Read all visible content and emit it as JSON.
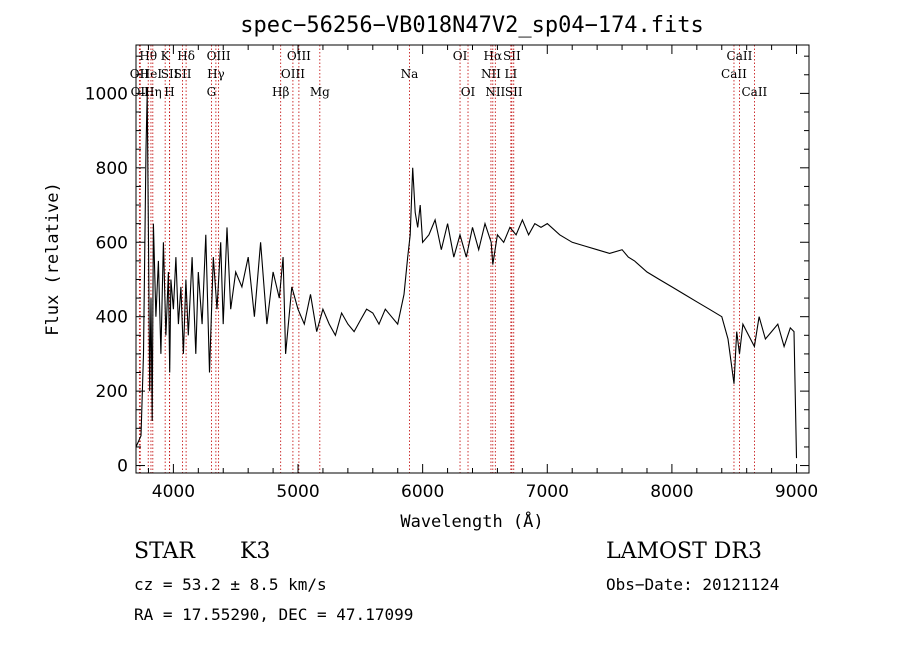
{
  "chart_data": {
    "type": "line",
    "title": "spec−56256−VB018N47V2_sp04−174.fits",
    "xlabel": "Wavelength (Å)",
    "ylabel": "Flux (relative)",
    "xlim": [
      3700,
      9100
    ],
    "ylim": [
      -20,
      1130
    ],
    "xticks": [
      4000,
      5000,
      6000,
      7000,
      8000,
      9000
    ],
    "yticks": [
      0,
      200,
      400,
      600,
      800,
      1000
    ],
    "series": [
      {
        "name": "spectrum",
        "x": [
          3700,
          3740,
          3760,
          3780,
          3790,
          3800,
          3810,
          3820,
          3830,
          3840,
          3860,
          3880,
          3900,
          3920,
          3940,
          3960,
          3970,
          3980,
          4000,
          4020,
          4040,
          4060,
          4080,
          4100,
          4120,
          4150,
          4180,
          4200,
          4230,
          4260,
          4290,
          4320,
          4350,
          4380,
          4400,
          4430,
          4460,
          4500,
          4550,
          4600,
          4650,
          4700,
          4750,
          4800,
          4850,
          4880,
          4900,
          4950,
          5000,
          5050,
          5100,
          5150,
          5200,
          5250,
          5300,
          5350,
          5400,
          5450,
          5500,
          5550,
          5600,
          5650,
          5700,
          5750,
          5800,
          5850,
          5880,
          5900,
          5920,
          5940,
          5960,
          5980,
          6000,
          6050,
          6100,
          6150,
          6200,
          6250,
          6300,
          6350,
          6400,
          6450,
          6500,
          6550,
          6563,
          6600,
          6650,
          6700,
          6750,
          6800,
          6850,
          6900,
          6950,
          7000,
          7100,
          7200,
          7300,
          7400,
          7500,
          7600,
          7650,
          7700,
          7800,
          7900,
          8000,
          8100,
          8200,
          8300,
          8400,
          8450,
          8498,
          8520,
          8542,
          8570,
          8600,
          8662,
          8700,
          8750,
          8800,
          8850,
          8900,
          8950,
          8980,
          9000
        ],
        "values": [
          50,
          80,
          300,
          850,
          1000,
          600,
          200,
          450,
          120,
          650,
          400,
          550,
          300,
          600,
          350,
          520,
          250,
          500,
          420,
          560,
          380,
          480,
          300,
          500,
          350,
          560,
          300,
          520,
          380,
          620,
          250,
          560,
          420,
          600,
          380,
          640,
          420,
          520,
          480,
          560,
          400,
          600,
          380,
          520,
          450,
          560,
          300,
          480,
          420,
          380,
          460,
          360,
          420,
          380,
          350,
          410,
          380,
          360,
          390,
          420,
          410,
          380,
          420,
          400,
          380,
          460,
          560,
          620,
          800,
          680,
          640,
          700,
          600,
          620,
          660,
          580,
          650,
          560,
          620,
          560,
          640,
          580,
          650,
          600,
          540,
          620,
          600,
          640,
          620,
          660,
          620,
          650,
          640,
          650,
          620,
          600,
          590,
          580,
          570,
          580,
          560,
          550,
          520,
          500,
          480,
          460,
          440,
          420,
          400,
          340,
          220,
          360,
          300,
          380,
          360,
          320,
          400,
          340,
          360,
          380,
          320,
          370,
          360,
          20
        ]
      }
    ],
    "lines": [
      {
        "label": "OΙΙ",
        "x": 3727,
        "row": 1
      },
      {
        "label": "OΙΙ",
        "x": 3734,
        "row": 2
      },
      {
        "label": "Hθ",
        "x": 3798,
        "row": 0
      },
      {
        "label": "HeΙ",
        "x": 3820,
        "row": 1
      },
      {
        "label": "Hη",
        "x": 3835,
        "row": 2
      },
      {
        "label": "K",
        "x": 3934,
        "row": 0
      },
      {
        "label": "SΙΙ",
        "x": 3970,
        "row": 1
      },
      {
        "label": "H",
        "x": 3969,
        "row": 2
      },
      {
        "label": "Hδ",
        "x": 4102,
        "row": 0
      },
      {
        "label": "SΙΙ",
        "x": 4074,
        "row": 1
      },
      {
        "label": "OΙΙΙ",
        "x": 4363,
        "row": 0
      },
      {
        "label": "Hγ",
        "x": 4341,
        "row": 1
      },
      {
        "label": "G",
        "x": 4305,
        "row": 2
      },
      {
        "label": "Hβ",
        "x": 4861,
        "row": 2
      },
      {
        "label": "OΙΙΙ",
        "x": 5007,
        "row": 0
      },
      {
        "label": "OΙΙΙ",
        "x": 4959,
        "row": 1
      },
      {
        "label": "Mg",
        "x": 5175,
        "row": 2
      },
      {
        "label": "Na",
        "x": 5894,
        "row": 1
      },
      {
        "label": "OΙ",
        "x": 6300,
        "row": 0
      },
      {
        "label": "OΙ",
        "x": 6364,
        "row": 2
      },
      {
        "label": "Hα",
        "x": 6563,
        "row": 0
      },
      {
        "label": "NΙΙ",
        "x": 6548,
        "row": 1
      },
      {
        "label": "NΙΙ",
        "x": 6583,
        "row": 2
      },
      {
        "label": "SΙΙ",
        "x": 6716,
        "row": 0
      },
      {
        "label": "LΙ",
        "x": 6708,
        "row": 1
      },
      {
        "label": "SΙΙ",
        "x": 6731,
        "row": 2
      },
      {
        "label": "CaΙΙ",
        "x": 8542,
        "row": 0
      },
      {
        "label": "CaΙΙ",
        "x": 8498,
        "row": 1
      },
      {
        "label": "CaΙΙ",
        "x": 8662,
        "row": 2
      }
    ]
  },
  "info": {
    "object_class": "STAR",
    "subclass": "K3",
    "survey": "LAMOST DR3",
    "redshift": "cz = 53.2 ± 8.5 km/s",
    "obs_date": "Obs−Date: 20121124",
    "coords": "RA =  17.55290, DEC =  47.17099"
  },
  "colors": {
    "spectrum": "#000000",
    "line_marker": "#c00000",
    "axes": "#000000"
  }
}
